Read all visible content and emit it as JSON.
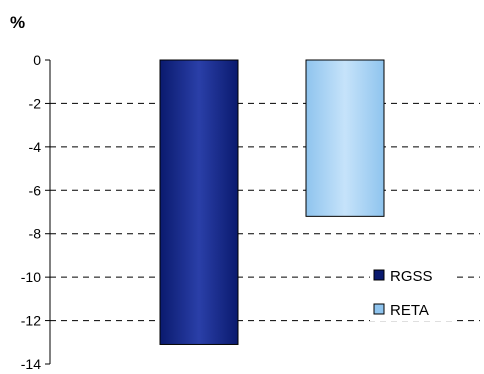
{
  "chart_data": {
    "type": "bar",
    "title": "",
    "ylabel": "%",
    "xlabel": "",
    "ylim": [
      -14,
      0
    ],
    "yticks": [
      "0",
      "-2",
      "-4",
      "-6",
      "-8",
      "-10",
      "-12",
      "-14"
    ],
    "ytick_values": [
      0,
      -2,
      -4,
      -6,
      -8,
      -10,
      -12,
      -14
    ],
    "grid": "horizontal-dashed",
    "legend_position": "bottom-right",
    "series": [
      {
        "name": "RGSS",
        "value": -13.1,
        "color": "#0a1a6e",
        "highlight": "#2a3fa8"
      },
      {
        "name": "RETA",
        "value": -7.2,
        "color": "#8fc4ee",
        "highlight": "#c6e3fa"
      }
    ]
  }
}
